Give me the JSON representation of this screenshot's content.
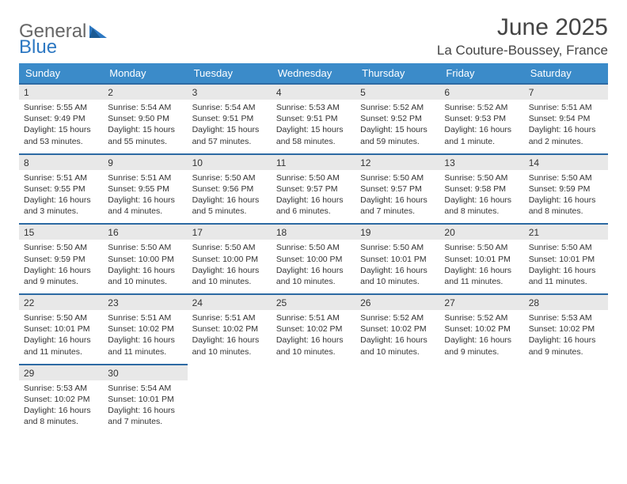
{
  "logo": {
    "text1": "General",
    "text2": "Blue"
  },
  "title": "June 2025",
  "location": "La Couture-Boussey, France",
  "colors": {
    "header_bg": "#3b8bc9",
    "header_text": "#ffffff",
    "daynum_bg": "#e8e8e8",
    "daynum_border": "#2d6aa3",
    "body_bg": "#ffffff",
    "text": "#333333",
    "logo_blue": "#2d78c2"
  },
  "weekdays": [
    "Sunday",
    "Monday",
    "Tuesday",
    "Wednesday",
    "Thursday",
    "Friday",
    "Saturday"
  ],
  "days": [
    {
      "n": "1",
      "sr": "Sunrise: 5:55 AM",
      "ss": "Sunset: 9:49 PM",
      "dl": "Daylight: 15 hours and 53 minutes."
    },
    {
      "n": "2",
      "sr": "Sunrise: 5:54 AM",
      "ss": "Sunset: 9:50 PM",
      "dl": "Daylight: 15 hours and 55 minutes."
    },
    {
      "n": "3",
      "sr": "Sunrise: 5:54 AM",
      "ss": "Sunset: 9:51 PM",
      "dl": "Daylight: 15 hours and 57 minutes."
    },
    {
      "n": "4",
      "sr": "Sunrise: 5:53 AM",
      "ss": "Sunset: 9:51 PM",
      "dl": "Daylight: 15 hours and 58 minutes."
    },
    {
      "n": "5",
      "sr": "Sunrise: 5:52 AM",
      "ss": "Sunset: 9:52 PM",
      "dl": "Daylight: 15 hours and 59 minutes."
    },
    {
      "n": "6",
      "sr": "Sunrise: 5:52 AM",
      "ss": "Sunset: 9:53 PM",
      "dl": "Daylight: 16 hours and 1 minute."
    },
    {
      "n": "7",
      "sr": "Sunrise: 5:51 AM",
      "ss": "Sunset: 9:54 PM",
      "dl": "Daylight: 16 hours and 2 minutes."
    },
    {
      "n": "8",
      "sr": "Sunrise: 5:51 AM",
      "ss": "Sunset: 9:55 PM",
      "dl": "Daylight: 16 hours and 3 minutes."
    },
    {
      "n": "9",
      "sr": "Sunrise: 5:51 AM",
      "ss": "Sunset: 9:55 PM",
      "dl": "Daylight: 16 hours and 4 minutes."
    },
    {
      "n": "10",
      "sr": "Sunrise: 5:50 AM",
      "ss": "Sunset: 9:56 PM",
      "dl": "Daylight: 16 hours and 5 minutes."
    },
    {
      "n": "11",
      "sr": "Sunrise: 5:50 AM",
      "ss": "Sunset: 9:57 PM",
      "dl": "Daylight: 16 hours and 6 minutes."
    },
    {
      "n": "12",
      "sr": "Sunrise: 5:50 AM",
      "ss": "Sunset: 9:57 PM",
      "dl": "Daylight: 16 hours and 7 minutes."
    },
    {
      "n": "13",
      "sr": "Sunrise: 5:50 AM",
      "ss": "Sunset: 9:58 PM",
      "dl": "Daylight: 16 hours and 8 minutes."
    },
    {
      "n": "14",
      "sr": "Sunrise: 5:50 AM",
      "ss": "Sunset: 9:59 PM",
      "dl": "Daylight: 16 hours and 8 minutes."
    },
    {
      "n": "15",
      "sr": "Sunrise: 5:50 AM",
      "ss": "Sunset: 9:59 PM",
      "dl": "Daylight: 16 hours and 9 minutes."
    },
    {
      "n": "16",
      "sr": "Sunrise: 5:50 AM",
      "ss": "Sunset: 10:00 PM",
      "dl": "Daylight: 16 hours and 10 minutes."
    },
    {
      "n": "17",
      "sr": "Sunrise: 5:50 AM",
      "ss": "Sunset: 10:00 PM",
      "dl": "Daylight: 16 hours and 10 minutes."
    },
    {
      "n": "18",
      "sr": "Sunrise: 5:50 AM",
      "ss": "Sunset: 10:00 PM",
      "dl": "Daylight: 16 hours and 10 minutes."
    },
    {
      "n": "19",
      "sr": "Sunrise: 5:50 AM",
      "ss": "Sunset: 10:01 PM",
      "dl": "Daylight: 16 hours and 10 minutes."
    },
    {
      "n": "20",
      "sr": "Sunrise: 5:50 AM",
      "ss": "Sunset: 10:01 PM",
      "dl": "Daylight: 16 hours and 11 minutes."
    },
    {
      "n": "21",
      "sr": "Sunrise: 5:50 AM",
      "ss": "Sunset: 10:01 PM",
      "dl": "Daylight: 16 hours and 11 minutes."
    },
    {
      "n": "22",
      "sr": "Sunrise: 5:50 AM",
      "ss": "Sunset: 10:01 PM",
      "dl": "Daylight: 16 hours and 11 minutes."
    },
    {
      "n": "23",
      "sr": "Sunrise: 5:51 AM",
      "ss": "Sunset: 10:02 PM",
      "dl": "Daylight: 16 hours and 11 minutes."
    },
    {
      "n": "24",
      "sr": "Sunrise: 5:51 AM",
      "ss": "Sunset: 10:02 PM",
      "dl": "Daylight: 16 hours and 10 minutes."
    },
    {
      "n": "25",
      "sr": "Sunrise: 5:51 AM",
      "ss": "Sunset: 10:02 PM",
      "dl": "Daylight: 16 hours and 10 minutes."
    },
    {
      "n": "26",
      "sr": "Sunrise: 5:52 AM",
      "ss": "Sunset: 10:02 PM",
      "dl": "Daylight: 16 hours and 10 minutes."
    },
    {
      "n": "27",
      "sr": "Sunrise: 5:52 AM",
      "ss": "Sunset: 10:02 PM",
      "dl": "Daylight: 16 hours and 9 minutes."
    },
    {
      "n": "28",
      "sr": "Sunrise: 5:53 AM",
      "ss": "Sunset: 10:02 PM",
      "dl": "Daylight: 16 hours and 9 minutes."
    },
    {
      "n": "29",
      "sr": "Sunrise: 5:53 AM",
      "ss": "Sunset: 10:02 PM",
      "dl": "Daylight: 16 hours and 8 minutes."
    },
    {
      "n": "30",
      "sr": "Sunrise: 5:54 AM",
      "ss": "Sunset: 10:01 PM",
      "dl": "Daylight: 16 hours and 7 minutes."
    }
  ]
}
